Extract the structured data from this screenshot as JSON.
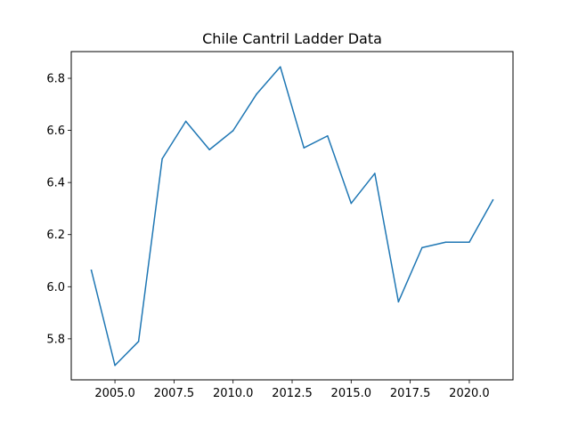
{
  "chart_data": {
    "type": "line",
    "title": "Chile Cantril Ladder Data",
    "xlabel": "",
    "ylabel": "",
    "xlim": [
      2003.15,
      2021.85
    ],
    "ylim": [
      5.6425,
      6.9025
    ],
    "grid": false,
    "x_ticks": [
      2005.0,
      2007.5,
      2010.0,
      2012.5,
      2015.0,
      2017.5,
      2020.0
    ],
    "x_tick_labels": [
      "2005.0",
      "2007.5",
      "2010.0",
      "2012.5",
      "2015.0",
      "2017.5",
      "2020.0"
    ],
    "y_ticks": [
      5.8,
      6.0,
      6.2,
      6.4,
      6.6,
      6.8
    ],
    "y_tick_labels": [
      "5.8",
      "6.0",
      "6.2",
      "6.4",
      "6.6",
      "6.8"
    ],
    "series": [
      {
        "color": "#1f77b4",
        "x": [
          2004,
          2005,
          2006,
          2007,
          2008,
          2009,
          2010,
          2011,
          2012,
          2013,
          2014,
          2015,
          2016,
          2017,
          2018,
          2019,
          2020,
          2021
        ],
        "y": [
          6.063,
          5.698,
          5.79,
          6.491,
          6.635,
          6.526,
          6.599,
          6.74,
          6.844,
          6.533,
          6.579,
          6.32,
          6.435,
          5.942,
          6.15,
          6.171,
          6.171,
          6.333
        ]
      }
    ]
  }
}
